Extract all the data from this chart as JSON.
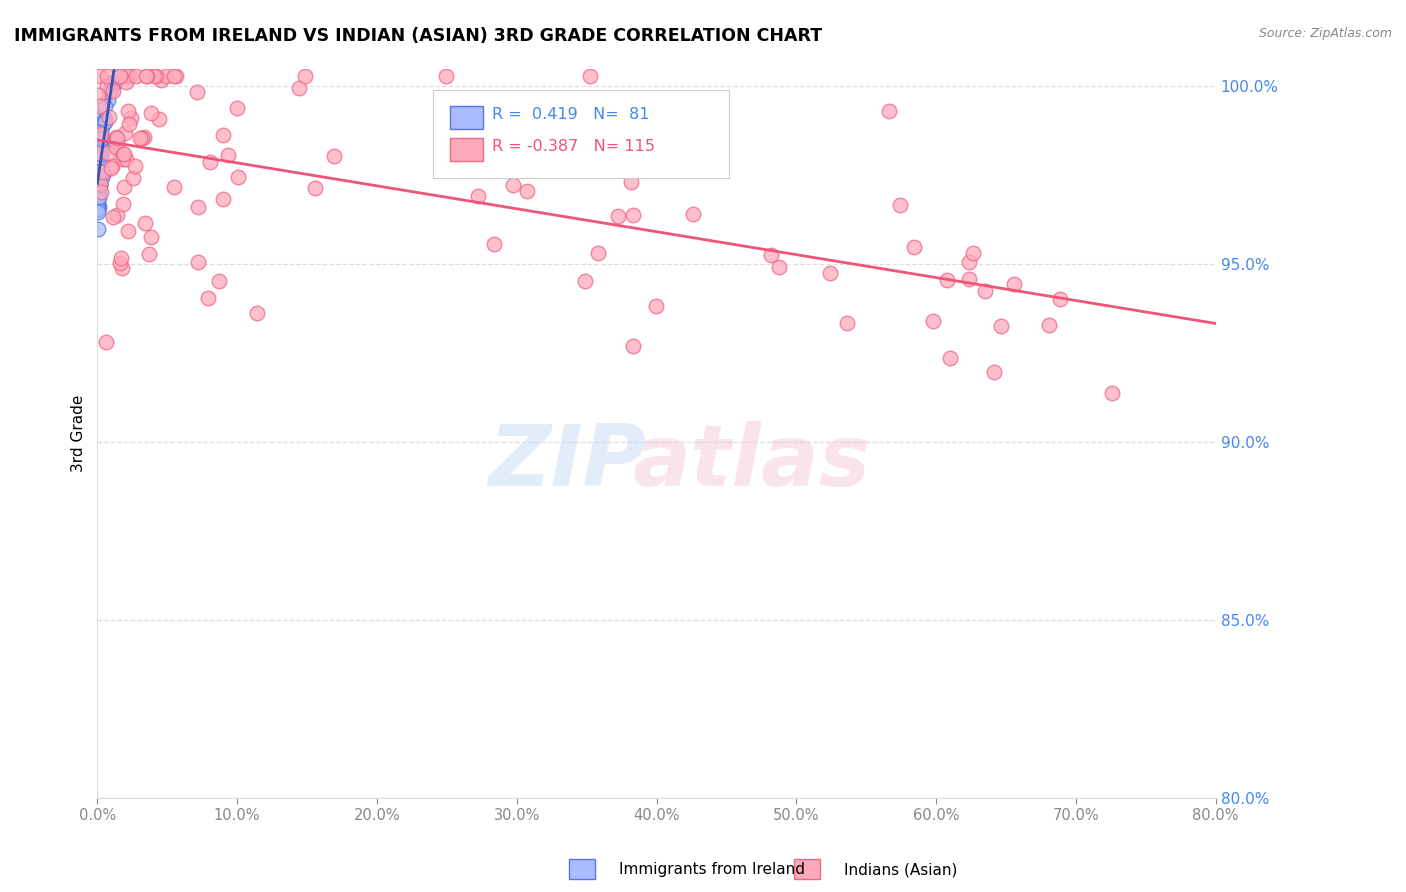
{
  "title": "IMMIGRANTS FROM IRELAND VS INDIAN (ASIAN) 3RD GRADE CORRELATION CHART",
  "source": "Source: ZipAtlas.com",
  "ylabel": "3rd Grade",
  "x_min": 0.0,
  "x_max": 80.0,
  "y_min": 80.0,
  "y_max": 100.5,
  "x_ticks": [
    0.0,
    10.0,
    20.0,
    30.0,
    40.0,
    50.0,
    60.0,
    70.0,
    80.0
  ],
  "y_ticks": [
    80.0,
    85.0,
    90.0,
    95.0,
    100.0
  ],
  "ireland_color": "#aabbff",
  "ireland_edge": "#5577dd",
  "indian_color": "#ffaabb",
  "indian_edge": "#ee6688",
  "ireland_R": 0.419,
  "ireland_N": 81,
  "indian_R": -0.387,
  "indian_N": 115,
  "trend_ireland_color": "#3355bb",
  "trend_indian_color": "#ee5577",
  "legend_ireland": "Immigrants from Ireland",
  "legend_indian": "Indians (Asian)",
  "tick_color_y": "#4488ee",
  "tick_color_x": "#888888",
  "grid_color": "#dddddd",
  "ireland_seed": 42,
  "indian_seed": 7
}
